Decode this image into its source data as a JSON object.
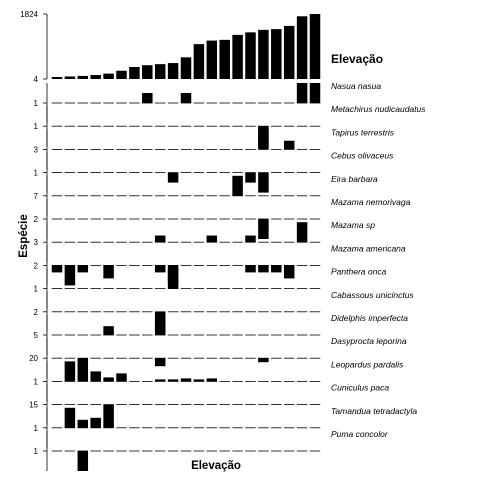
{
  "chart_data": {
    "type": "bar",
    "xlabel": "Elevação",
    "ylabel": "Espécie",
    "top_panel": {
      "label": "Elevação",
      "tick_top": "1824",
      "tick_bottom": "4",
      "ylim": [
        4,
        1824
      ],
      "values": [
        60,
        75,
        90,
        115,
        155,
        235,
        340,
        390,
        420,
        450,
        610,
        980,
        1080,
        1100,
        1240,
        1310,
        1380,
        1400,
        1490,
        1760,
        1824
      ]
    },
    "panels": [
      {
        "species": "Nasua nasua",
        "tick": "1",
        "values": [
          0,
          0,
          0,
          0,
          0,
          0,
          0,
          0.5,
          0,
          0,
          0.5,
          0,
          0,
          0,
          0,
          0,
          0,
          0,
          0,
          1,
          2
        ]
      },
      {
        "species": "Metachirus nudicaudatus",
        "tick": "1",
        "values": [
          0,
          0,
          0,
          0,
          0,
          0,
          0,
          0,
          0,
          0,
          0,
          0,
          0,
          0,
          0,
          0,
          1,
          0,
          0,
          0,
          0
        ]
      },
      {
        "species": "Tapirus terrestris",
        "tick": "3",
        "values": [
          0,
          0,
          0,
          0,
          0,
          0,
          0,
          0,
          0,
          0,
          0,
          0,
          0,
          0,
          0,
          0,
          3,
          0,
          1.3,
          0,
          0
        ]
      },
      {
        "species": "Cebus olivaceus",
        "tick": "1",
        "values": [
          0,
          0,
          0,
          0,
          0,
          0,
          0,
          0,
          0,
          0.5,
          0,
          0,
          0,
          0,
          0,
          0.5,
          1,
          0,
          0,
          0,
          0
        ]
      },
      {
        "species": "Eira barbara",
        "tick": "7",
        "values": [
          0,
          0,
          0,
          0,
          0,
          0,
          0,
          0,
          0,
          0,
          0,
          0,
          0,
          0,
          7,
          0,
          0,
          0,
          0,
          0,
          0
        ]
      },
      {
        "species": "Mazama nemorivaga",
        "tick": "2",
        "values": [
          0,
          0,
          0,
          0,
          0,
          0,
          0,
          0,
          0,
          0,
          0,
          0,
          0,
          0,
          0,
          0,
          2,
          0,
          0,
          0,
          0
        ]
      },
      {
        "species": "Mazama sp",
        "tick": "3",
        "values": [
          0,
          0,
          0,
          0,
          0,
          0,
          0,
          0,
          1,
          0,
          0,
          0,
          1,
          0,
          0,
          1,
          0,
          0,
          0,
          3,
          0
        ]
      },
      {
        "species": "Mazama americana",
        "tick": "2",
        "values": [
          0.7,
          2,
          0.7,
          0,
          1.3,
          0,
          0,
          0,
          0.7,
          1.8,
          0,
          0,
          0,
          0,
          0,
          0.7,
          0.7,
          0.7,
          1.3,
          0,
          0
        ]
      },
      {
        "species": "Panthera onca",
        "tick": "1",
        "values": [
          0,
          0,
          0,
          0,
          0,
          0,
          0,
          0,
          0,
          1,
          0,
          0,
          0,
          0,
          0,
          0,
          0,
          0,
          0,
          0,
          0
        ]
      },
      {
        "species": "Cabassous unicinctus",
        "tick": "2",
        "values": [
          0,
          0,
          0,
          0,
          0,
          0,
          0,
          0,
          2,
          0,
          0,
          0,
          0,
          0,
          0,
          0,
          0,
          0,
          0,
          0,
          0
        ]
      },
      {
        "species": "Didelphis imperfecta",
        "tick": "5",
        "values": [
          0,
          0,
          0,
          0,
          2.2,
          0,
          0,
          0,
          5,
          0,
          0,
          0,
          0,
          0,
          0,
          0,
          0,
          0,
          0,
          0,
          0
        ]
      },
      {
        "species": "Dasyprocta leporina",
        "tick": "20",
        "values": [
          0,
          0,
          20,
          0,
          0,
          0,
          0,
          0,
          8,
          0,
          0,
          0,
          0,
          0,
          0,
          0,
          4,
          0,
          0,
          0,
          0
        ]
      },
      {
        "species": "Leopardus pardalis",
        "tick": "1",
        "values": [
          0,
          1,
          0.2,
          0.5,
          0.2,
          0.4,
          0,
          0,
          0.1,
          0.1,
          0.15,
          0.1,
          0.15,
          0,
          0,
          0,
          0,
          0,
          0,
          0,
          0
        ]
      },
      {
        "species": "Cuniculus paca",
        "tick": "15",
        "values": [
          0,
          0,
          0,
          0,
          15,
          0,
          0,
          0,
          0,
          0,
          0,
          0,
          0,
          0,
          0,
          0,
          0,
          0,
          0,
          0,
          0
        ]
      },
      {
        "species": "Tamandua tetradactyla",
        "tick": "1",
        "values": [
          0,
          1,
          0.4,
          0.5,
          0.2,
          0,
          0,
          0,
          0,
          0,
          0,
          0,
          0,
          0,
          0,
          0,
          0,
          0,
          0,
          0,
          0
        ]
      },
      {
        "species": "Puma concolor",
        "tick": "1",
        "values": [
          0,
          0,
          1,
          0,
          0,
          0,
          0,
          0,
          0,
          0,
          0,
          0,
          0,
          0,
          0,
          0,
          0,
          0,
          0,
          0,
          0
        ]
      }
    ]
  }
}
